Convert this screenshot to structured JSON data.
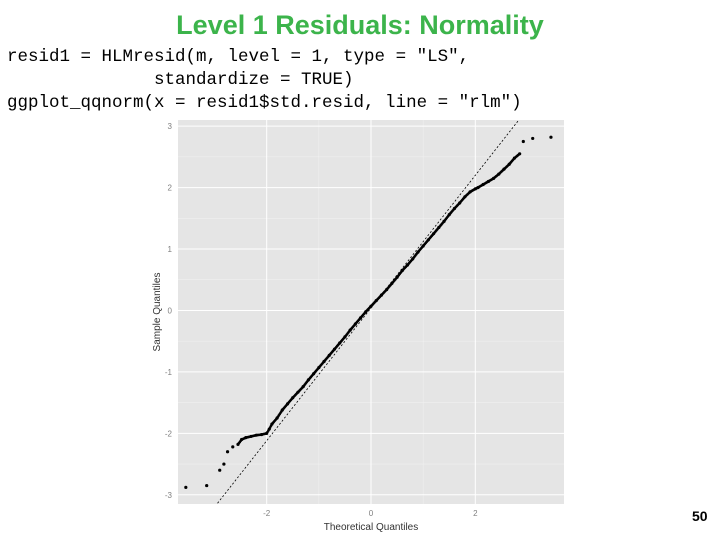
{
  "slide": {
    "title": "Level 1 Residuals: Normality",
    "code_lines": [
      "resid1 = HLMresid(m, level = 1, type = \"LS\",",
      "              standardize = TRUE)",
      "ggplot_qqnorm(x = resid1$std.resid, line = \"rlm\")"
    ],
    "page_number": "50"
  },
  "colors": {
    "title": "#3cb44b",
    "panel_background": "#e5e5e5",
    "grid_major": "#ffffff",
    "points": "#000000",
    "reference_line": "#000000",
    "axis_text": "#7f7f7f"
  },
  "chart_data": {
    "type": "scatter",
    "title": "",
    "xlabel": "Theoretical Quantiles",
    "ylabel": "Sample Quantiles",
    "x_ticks": [
      -2,
      0,
      2
    ],
    "y_ticks": [
      -3,
      -2,
      -1,
      0,
      1,
      2,
      3
    ],
    "xlim": [
      -3.7,
      3.7
    ],
    "ylim": [
      -3.15,
      3.1
    ],
    "grid": true,
    "legend": "none",
    "reference_line": {
      "intercept": 0.04,
      "slope": 1.08,
      "style": "dotted"
    },
    "series": [
      {
        "points_x": [
          -3.55,
          -3.15,
          -2.9,
          -2.82,
          -2.75,
          -2.65,
          -2.55,
          -2.48,
          -2.4,
          -2.3,
          -2.2,
          -2.1,
          -2.0,
          -1.95,
          -1.9,
          -1.8,
          -1.7,
          -1.6,
          -1.5,
          -1.4,
          -1.3,
          -1.2,
          -1.1,
          -1.0,
          -0.9,
          -0.8,
          -0.7,
          -0.6,
          -0.5,
          -0.4,
          -0.3,
          -0.2,
          -0.1,
          0.0,
          0.1,
          0.2,
          0.3,
          0.4,
          0.5,
          0.6,
          0.7,
          0.8,
          0.9,
          1.0,
          1.1,
          1.2,
          1.3,
          1.4,
          1.5,
          1.6,
          1.7,
          1.8,
          1.9,
          2.0,
          2.05,
          2.15,
          2.25,
          2.35,
          2.45,
          2.55,
          2.65,
          2.75,
          2.85,
          2.92,
          3.1,
          3.45
        ],
        "points_y": [
          -2.88,
          -2.85,
          -2.6,
          -2.5,
          -2.3,
          -2.22,
          -2.18,
          -2.1,
          -2.07,
          -2.05,
          -2.03,
          -2.02,
          -2.0,
          -1.93,
          -1.85,
          -1.75,
          -1.62,
          -1.52,
          -1.42,
          -1.33,
          -1.24,
          -1.13,
          -1.03,
          -0.93,
          -0.83,
          -0.73,
          -0.63,
          -0.53,
          -0.43,
          -0.32,
          -0.22,
          -0.12,
          -0.02,
          0.07,
          0.16,
          0.25,
          0.34,
          0.44,
          0.54,
          0.65,
          0.74,
          0.84,
          0.95,
          1.05,
          1.15,
          1.25,
          1.35,
          1.45,
          1.56,
          1.66,
          1.75,
          1.85,
          1.93,
          1.98,
          2.0,
          2.05,
          2.1,
          2.15,
          2.22,
          2.3,
          2.38,
          2.48,
          2.55,
          2.75,
          2.8,
          2.82
        ]
      }
    ]
  }
}
